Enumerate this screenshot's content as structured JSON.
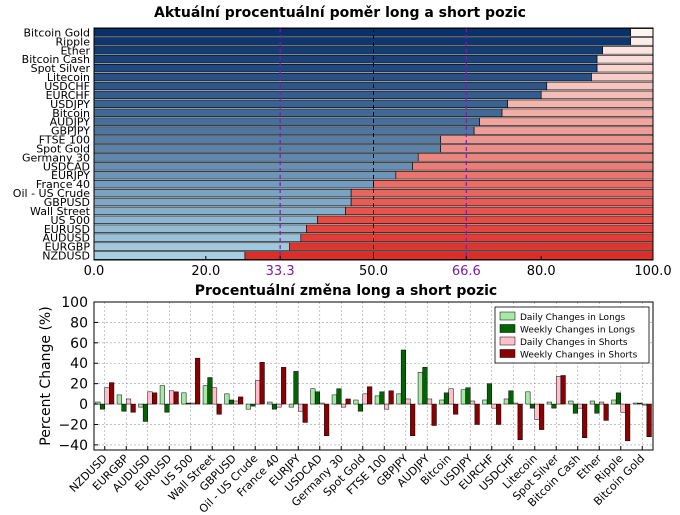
{
  "chart_data": [
    {
      "type": "bar",
      "orientation": "horizontal",
      "stacked": true,
      "title": "Aktuální procentuální poměr long a short pozic",
      "xlim": [
        0,
        100
      ],
      "ticks": [
        "0.0",
        "20.0",
        "33.3",
        "50.0",
        "66.6",
        "80.0",
        "100.0"
      ],
      "reference_lines": [
        33.3,
        50.0,
        66.6
      ],
      "categories": [
        "Bitcoin Gold",
        "Ripple",
        "Ether",
        "Bitcoin Cash",
        "Spot Silver",
        "Litecoin",
        "USDCHF",
        "EURCHF",
        "USDJPY",
        "Bitcoin",
        "AUDJPY",
        "GBPJPY",
        "FTSE 100",
        "Spot Gold",
        "Germany 30",
        "USDCAD",
        "EURJPY",
        "France 40",
        "Oil - US Crude",
        "GBPUSD",
        "Wall Street",
        "US 500",
        "EURUSD",
        "AUDUSD",
        "EURGBP",
        "NZDUSD"
      ],
      "long_pct": [
        96,
        96,
        91,
        90,
        90,
        89,
        81,
        80,
        74,
        73,
        69,
        68,
        62,
        62,
        58,
        57,
        54,
        50,
        46,
        46,
        45,
        40,
        38,
        37,
        35,
        27
      ],
      "colors": {
        "long_high": "#08306b",
        "long_low": "#a6cee3",
        "short_high": "#de2d26",
        "short_low": "#fff5f0",
        "ref_line": "#7a1fa2",
        "center_line": "#000000"
      }
    },
    {
      "type": "bar",
      "title": "Procentuální změna long a short pozic",
      "ylabel": "Percent Change (%)",
      "ylim": [
        -45,
        100
      ],
      "yticks": [
        "100",
        "80",
        "60",
        "40",
        "20",
        "0",
        "−20",
        "−40"
      ],
      "categories": [
        "NZDUSD",
        "EURGBP",
        "AUDUSD",
        "EURUSD",
        "US 500",
        "Wall Street",
        "GBPUSD",
        "Oil - US Crude",
        "France 40",
        "EURJPY",
        "USDCAD",
        "Germany 30",
        "Spot Gold",
        "FTSE 100",
        "GBPJPY",
        "AUDJPY",
        "Bitcoin",
        "USDJPY",
        "EURCHF",
        "USDCHF",
        "Litecoin",
        "Spot Silver",
        "Bitcoin Cash",
        "Ether",
        "Ripple",
        "Bitcoin Gold"
      ],
      "series": [
        {
          "name": "Daily Changes in Longs",
          "color": "#a6e8a6",
          "values": [
            2,
            9,
            -3,
            18,
            11,
            18,
            10,
            -5,
            2,
            -3,
            15,
            9,
            4,
            8,
            10,
            31,
            4,
            14,
            4,
            5,
            12,
            2,
            3,
            3,
            4,
            1
          ]
        },
        {
          "name": "Weekly Changes in Longs",
          "color": "#006400",
          "values": [
            -5,
            -7,
            -17,
            -8,
            1,
            26,
            4,
            -2,
            -5,
            32,
            12,
            15,
            -7,
            12,
            53,
            36,
            11,
            16,
            20,
            13,
            -4,
            -4,
            -9,
            -9,
            11,
            1
          ]
        },
        {
          "name": "Daily Changes in Shorts",
          "color": "#ffc0cb",
          "values": [
            16,
            5,
            12,
            13,
            1,
            16,
            3,
            23,
            -3,
            -7,
            1,
            -3,
            10,
            -5,
            5,
            5,
            15,
            3,
            -4,
            1,
            -15,
            27,
            -4,
            2,
            -8,
            -1
          ]
        },
        {
          "name": "Weekly Changes in Shorts",
          "color": "#8b0000",
          "values": [
            21,
            -8,
            11,
            12,
            45,
            -10,
            7,
            41,
            36,
            -18,
            -31,
            5,
            17,
            13,
            -31,
            -21,
            -10,
            -20,
            -20,
            -35,
            -25,
            28,
            -33,
            -16,
            -36,
            -32
          ]
        }
      ],
      "legend_position": "top-right",
      "grid": true
    }
  ]
}
